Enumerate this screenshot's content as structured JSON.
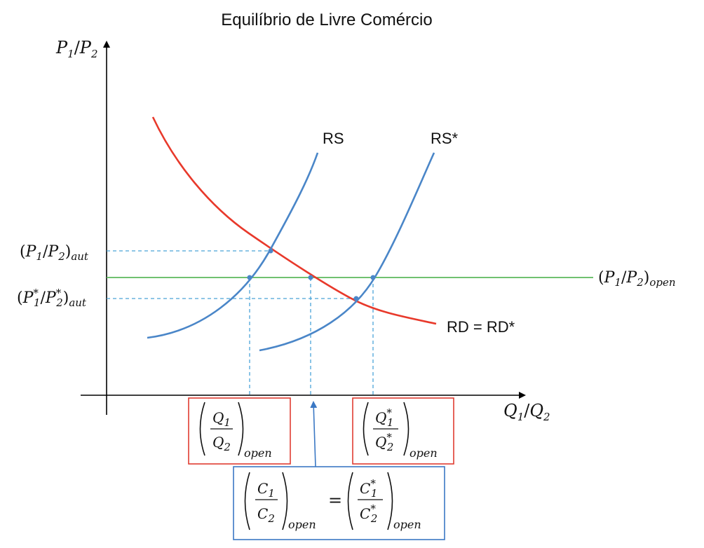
{
  "title": "Equilíbrio de Livre Comércio",
  "axes": {
    "y": {
      "num": "P",
      "num_sub": "1",
      "slash": "/",
      "den": "P",
      "den_sub": "2"
    },
    "x": {
      "num": "Q",
      "num_sub": "1",
      "slash": "/",
      "den": "Q",
      "den_sub": "2"
    }
  },
  "curves": {
    "rs": {
      "label": "RS"
    },
    "rs_star": {
      "label": "RS*"
    },
    "rd": {
      "label": "RD = RD*"
    }
  },
  "price_labels": {
    "aut": {
      "p1": "P",
      "s1": "1",
      "p2": "P",
      "s2": "2",
      "star": "",
      "suffix": "aut"
    },
    "aut_star": {
      "p1": "P",
      "s1": "1",
      "p2": "P",
      "s2": "2",
      "star": "*",
      "suffix": "aut"
    },
    "open": {
      "p1": "P",
      "s1": "1",
      "p2": "P",
      "s2": "2",
      "star": "",
      "suffix": "open"
    }
  },
  "boxes": {
    "home_output": {
      "num": "Q",
      "num_sub": "1",
      "den": "Q",
      "den_sub": "2",
      "star": "",
      "suffix": "open"
    },
    "foreign_output": {
      "num": "Q",
      "num_sub": "1",
      "den": "Q",
      "den_sub": "2",
      "star": "*",
      "suffix": "open"
    },
    "consumption": {
      "left": {
        "num": "C",
        "num_sub": "1",
        "den": "C",
        "den_sub": "2",
        "star": "",
        "suffix": "open"
      },
      "equals": "=",
      "right": {
        "num": "C",
        "num_sub": "1",
        "den": "C",
        "den_sub": "2",
        "star": "*",
        "suffix": "open"
      }
    }
  },
  "colors": {
    "rs": "#4a86c8",
    "rd": "#e8392b",
    "open_line": "#5cb85c",
    "guide": "#4aa3d8",
    "box_red": "#e03c31",
    "box_blue": "#3b78c4",
    "axis": "#000000"
  }
}
